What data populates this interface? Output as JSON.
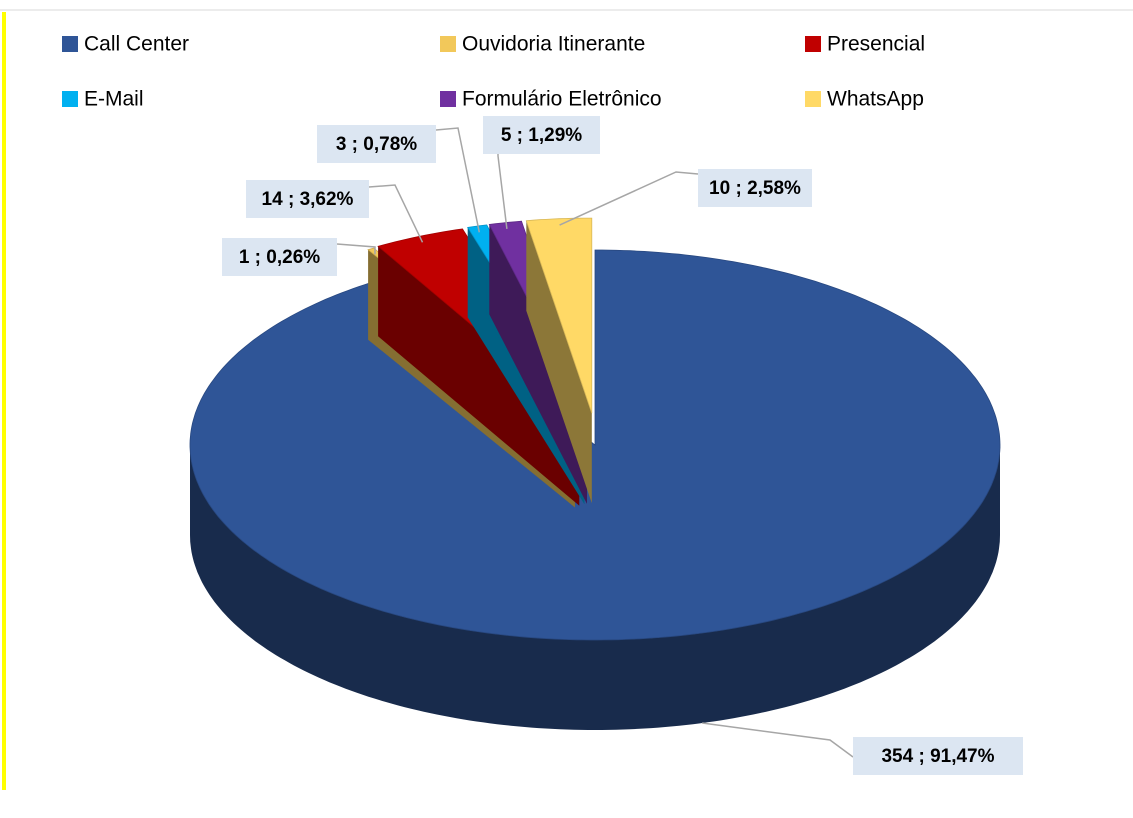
{
  "chart_data": {
    "type": "pie",
    "categories": [
      "Call Center",
      "Ouvidoria Itinerante",
      "Presencial",
      "E-Mail",
      "Formulário Eletrônico",
      "WhatsApp"
    ],
    "values": [
      354,
      1,
      14,
      3,
      5,
      10
    ],
    "value_labels": [
      "354 ; 91,47%",
      "1 ; 0,26%",
      "14 ; 3,62%",
      "3 ; 0,78%",
      "5 ; 1,29%",
      "10 ; 2,58%"
    ],
    "colors": [
      "#2f5597",
      "#f2c85a",
      "#c00000",
      "#00b0f0",
      "#7030a0",
      "#ffd966"
    ],
    "legend": "top"
  }
}
